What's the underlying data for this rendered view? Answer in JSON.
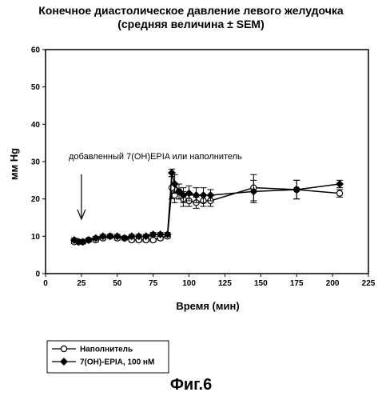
{
  "chart_data": {
    "type": "line",
    "title": "Конечное диастолическое давление левого желудочка",
    "subtitle": "(средняя величина ± SEM)",
    "xlabel": "Время (мин)",
    "ylabel": "мм Hg",
    "xlim": [
      0,
      225
    ],
    "ylim": [
      0,
      60
    ],
    "xticks": [
      0,
      25,
      50,
      75,
      100,
      125,
      150,
      175,
      200,
      225
    ],
    "yticks": [
      0,
      10,
      20,
      30,
      40,
      50,
      60
    ],
    "grid": false,
    "legend_position": "bottom-left",
    "annotation": {
      "text": "добавленный 7(OH)EPIA или наполнитель",
      "arrow_x": 25
    },
    "series": [
      {
        "name": "Наполнитель",
        "marker": "open-circle",
        "x": [
          20,
          23,
          26,
          30,
          35,
          40,
          45,
          50,
          55,
          60,
          65,
          70,
          75,
          80,
          85,
          88,
          90,
          93,
          96,
          100,
          105,
          110,
          115,
          145,
          175,
          205
        ],
        "y": [
          8.5,
          8.5,
          8.5,
          9.0,
          9.0,
          9.5,
          10.0,
          9.5,
          9.5,
          9.0,
          9.0,
          9.0,
          9.0,
          9.5,
          10.0,
          23.0,
          21.0,
          22.0,
          20.0,
          19.5,
          19.0,
          19.5,
          19.5,
          23.0,
          22.5,
          21.5
        ],
        "err": [
          0.5,
          0.5,
          0.5,
          0.5,
          0.5,
          0.5,
          0.5,
          0.5,
          0.5,
          0.5,
          0.5,
          0.5,
          0.5,
          0.5,
          0.5,
          3.0,
          2.0,
          2.0,
          2.0,
          1.5,
          1.5,
          1.5,
          1.5,
          3.5,
          2.5,
          1.0
        ]
      },
      {
        "name": "7(OH)-EPIA, 100 нМ",
        "marker": "filled-diamond",
        "x": [
          20,
          23,
          26,
          30,
          35,
          40,
          45,
          50,
          55,
          60,
          65,
          70,
          75,
          80,
          85,
          88,
          90,
          93,
          96,
          100,
          105,
          110,
          115,
          145,
          175,
          205
        ],
        "y": [
          9.0,
          8.5,
          8.5,
          9.0,
          9.5,
          10.0,
          10.0,
          10.0,
          9.5,
          10.0,
          10.0,
          10.0,
          10.5,
          10.5,
          10.5,
          27.0,
          24.0,
          22.0,
          21.0,
          21.5,
          21.0,
          21.0,
          21.0,
          22.0,
          22.5,
          24.0
        ],
        "err": [
          0.5,
          0.5,
          0.5,
          0.5,
          0.5,
          0.5,
          0.5,
          0.5,
          0.5,
          0.5,
          0.5,
          0.5,
          0.5,
          0.5,
          0.5,
          1.0,
          2.5,
          2.0,
          2.0,
          2.0,
          2.0,
          2.0,
          1.5,
          3.0,
          2.5,
          1.0
        ]
      }
    ]
  },
  "figure_caption": "Фиг.6"
}
